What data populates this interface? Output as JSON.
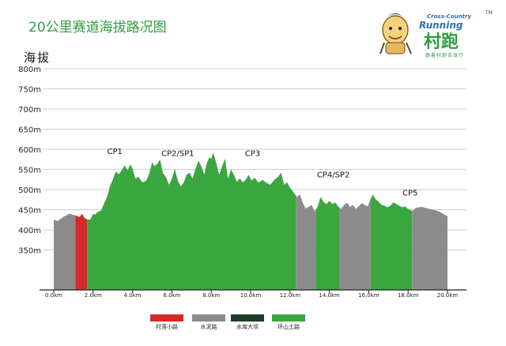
{
  "title": "20公里赛道海拔路况图",
  "chart_data": {
    "type": "area",
    "title": "20公里赛道海拔路况图",
    "ylabel": "海拔",
    "xlabel": "",
    "xlim": [
      0,
      20
    ],
    "ylim": [
      300,
      800
    ],
    "y_ticks": [
      {
        "value": 350,
        "label": "350m"
      },
      {
        "value": 400,
        "label": "400m"
      },
      {
        "value": 450,
        "label": "450m"
      },
      {
        "value": 500,
        "label": "500m"
      },
      {
        "value": 550,
        "label": "550m"
      },
      {
        "value": 600,
        "label": "600m"
      },
      {
        "value": 650,
        "label": "650m"
      },
      {
        "value": 700,
        "label": "700m"
      },
      {
        "value": 750,
        "label": "750m"
      },
      {
        "value": 800,
        "label": "800m"
      }
    ],
    "x_ticks": [
      {
        "value": 0,
        "label": "0.0km"
      },
      {
        "value": 2,
        "label": "2.0km"
      },
      {
        "value": 4,
        "label": "4.0km"
      },
      {
        "value": 6,
        "label": "6.0km"
      },
      {
        "value": 8,
        "label": "8.0km"
      },
      {
        "value": 10,
        "label": "10.0km"
      },
      {
        "value": 12,
        "label": "12.0km"
      },
      {
        "value": 14,
        "label": "14.0km"
      },
      {
        "value": 16,
        "label": "16.0km"
      },
      {
        "value": 18,
        "label": "18.0km"
      },
      {
        "value": 20,
        "label": "20.0km"
      }
    ],
    "profile": [
      [
        0.0,
        425
      ],
      [
        0.2,
        422
      ],
      [
        0.5,
        433
      ],
      [
        0.8,
        440
      ],
      [
        1.1,
        436
      ],
      [
        1.3,
        432
      ],
      [
        1.45,
        440
      ],
      [
        1.55,
        430
      ],
      [
        1.7,
        426
      ],
      [
        1.85,
        425
      ],
      [
        2.0,
        440
      ],
      [
        2.1,
        438
      ],
      [
        2.25,
        445
      ],
      [
        2.4,
        448
      ],
      [
        2.6,
        470
      ],
      [
        2.75,
        488
      ],
      [
        2.85,
        508
      ],
      [
        3.0,
        525
      ],
      [
        3.15,
        545
      ],
      [
        3.3,
        538
      ],
      [
        3.45,
        548
      ],
      [
        3.6,
        560
      ],
      [
        3.75,
        548
      ],
      [
        3.9,
        563
      ],
      [
        4.0,
        552
      ],
      [
        4.15,
        527
      ],
      [
        4.3,
        532
      ],
      [
        4.5,
        518
      ],
      [
        4.7,
        522
      ],
      [
        4.85,
        540
      ],
      [
        5.0,
        568
      ],
      [
        5.1,
        558
      ],
      [
        5.25,
        563
      ],
      [
        5.4,
        575
      ],
      [
        5.55,
        540
      ],
      [
        5.7,
        532
      ],
      [
        5.85,
        512
      ],
      [
        6.0,
        527
      ],
      [
        6.15,
        552
      ],
      [
        6.3,
        522
      ],
      [
        6.45,
        508
      ],
      [
        6.6,
        517
      ],
      [
        6.75,
        537
      ],
      [
        6.9,
        542
      ],
      [
        7.05,
        527
      ],
      [
        7.2,
        552
      ],
      [
        7.35,
        572
      ],
      [
        7.5,
        557
      ],
      [
        7.65,
        537
      ],
      [
        7.75,
        562
      ],
      [
        7.9,
        580
      ],
      [
        8.0,
        577
      ],
      [
        8.1,
        592
      ],
      [
        8.25,
        567
      ],
      [
        8.4,
        537
      ],
      [
        8.55,
        557
      ],
      [
        8.7,
        577
      ],
      [
        8.85,
        527
      ],
      [
        9.0,
        550
      ],
      [
        9.15,
        537
      ],
      [
        9.3,
        519
      ],
      [
        9.45,
        528
      ],
      [
        9.6,
        518
      ],
      [
        9.75,
        524
      ],
      [
        9.9,
        537
      ],
      [
        10.05,
        522
      ],
      [
        10.2,
        530
      ],
      [
        10.4,
        517
      ],
      [
        10.6,
        524
      ],
      [
        10.8,
        517
      ],
      [
        11.0,
        512
      ],
      [
        11.2,
        524
      ],
      [
        11.4,
        532
      ],
      [
        11.55,
        542
      ],
      [
        11.7,
        512
      ],
      [
        11.85,
        518
      ],
      [
        12.0,
        505
      ],
      [
        12.2,
        492
      ],
      [
        12.35,
        482
      ],
      [
        12.5,
        488
      ],
      [
        12.65,
        467
      ],
      [
        12.8,
        453
      ],
      [
        12.95,
        457
      ],
      [
        13.1,
        462
      ],
      [
        13.25,
        446
      ],
      [
        13.4,
        457
      ],
      [
        13.55,
        482
      ],
      [
        13.7,
        470
      ],
      [
        13.85,
        464
      ],
      [
        14.0,
        472
      ],
      [
        14.15,
        464
      ],
      [
        14.3,
        468
      ],
      [
        14.45,
        458
      ],
      [
        14.6,
        452
      ],
      [
        14.75,
        462
      ],
      [
        14.9,
        467
      ],
      [
        15.05,
        457
      ],
      [
        15.2,
        462
      ],
      [
        15.35,
        452
      ],
      [
        15.5,
        459
      ],
      [
        15.65,
        466
      ],
      [
        15.8,
        462
      ],
      [
        15.95,
        458
      ],
      [
        16.05,
        472
      ],
      [
        16.2,
        488
      ],
      [
        16.35,
        476
      ],
      [
        16.5,
        470
      ],
      [
        16.65,
        462
      ],
      [
        16.8,
        460
      ],
      [
        16.95,
        456
      ],
      [
        17.1,
        460
      ],
      [
        17.25,
        468
      ],
      [
        17.4,
        464
      ],
      [
        17.55,
        460
      ],
      [
        17.7,
        456
      ],
      [
        17.85,
        458
      ],
      [
        18.0,
        452
      ],
      [
        18.2,
        447
      ],
      [
        18.4,
        455
      ],
      [
        18.7,
        457
      ],
      [
        19.0,
        453
      ],
      [
        19.3,
        450
      ],
      [
        19.6,
        445
      ],
      [
        19.85,
        438
      ],
      [
        20.0,
        434
      ]
    ],
    "segments": [
      {
        "from": 0.0,
        "to": 1.1,
        "surface": "水泥路"
      },
      {
        "from": 1.1,
        "to": 1.7,
        "surface": "村落小路"
      },
      {
        "from": 1.7,
        "to": 2.35,
        "surface": "环山土路"
      },
      {
        "from": 2.35,
        "to": 12.3,
        "surface": "环山土路"
      },
      {
        "from": 12.3,
        "to": 13.3,
        "surface": "水泥路"
      },
      {
        "from": 13.3,
        "to": 14.5,
        "surface": "环山土路"
      },
      {
        "from": 14.5,
        "to": 16.1,
        "surface": "水泥路"
      },
      {
        "from": 16.1,
        "to": 18.2,
        "surface": "环山土路"
      },
      {
        "from": 18.2,
        "to": 20.0,
        "surface": "水泥路"
      }
    ],
    "annotations": [
      {
        "label": "CP1",
        "x": 3.1,
        "y": 588
      },
      {
        "label": "CP2/SP1",
        "x": 6.3,
        "y": 583
      },
      {
        "label": "CP3",
        "x": 10.1,
        "y": 583
      },
      {
        "label": "CP4/SP2",
        "x": 14.2,
        "y": 530
      },
      {
        "label": "CP5",
        "x": 18.1,
        "y": 485
      }
    ],
    "legend": [
      {
        "label": "村落小路",
        "color": "#d42a2a"
      },
      {
        "label": "水泥路",
        "color": "#8c8c8c"
      },
      {
        "label": "水库大坝",
        "color": "#1f3d26"
      },
      {
        "label": "环山土路",
        "color": "#3aa640"
      }
    ],
    "legend_position": "bottom",
    "grid": true
  },
  "logo": {
    "line1": "Cross-Country",
    "line2": "Running",
    "brand": "村跑",
    "tagline": "跟着村跑去旅行",
    "mark": "TM"
  }
}
